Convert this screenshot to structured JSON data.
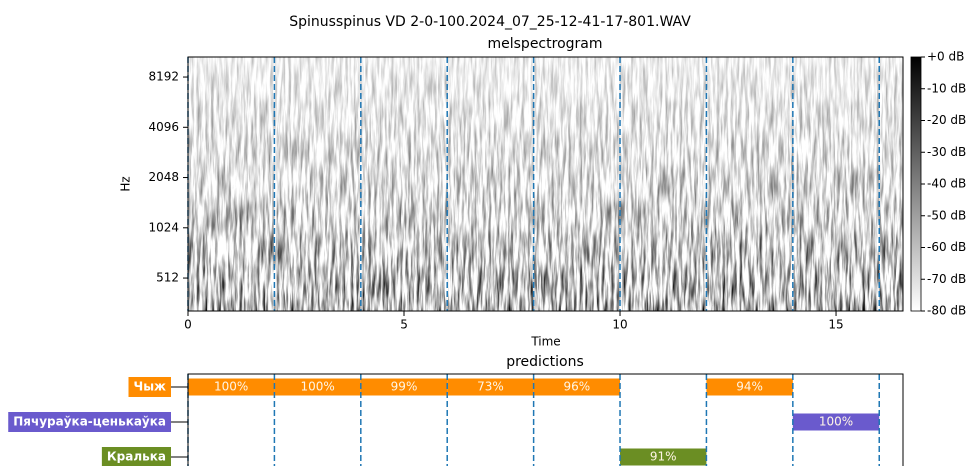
{
  "chart_data": [
    {
      "type": "spectrogram",
      "title": "Spinusspinus VD 2-0-100.2024_07_25-12-41-17-801.WAV",
      "subtitle": "melspectrogram",
      "xlabel": "Time",
      "ylabel": "Hz",
      "xlim": [
        0,
        16.55
      ],
      "xticks": [
        0,
        5,
        10,
        15
      ],
      "ylim": [
        325,
        10800
      ],
      "yscale": "log",
      "yticks": [
        512,
        1024,
        2048,
        4096,
        8192
      ],
      "markers": [
        0,
        2,
        4,
        6,
        8,
        10,
        12,
        14,
        16
      ],
      "marker_color": "#1f77b4",
      "colorbar": {
        "lim": [
          -80,
          0
        ],
        "ticks": [
          {
            "value": 0,
            "label": "+0 dB"
          },
          {
            "value": -10,
            "label": "-10 dB"
          },
          {
            "value": -20,
            "label": "-20 dB"
          },
          {
            "value": -30,
            "label": "-30 dB"
          },
          {
            "value": -40,
            "label": "-40 dB"
          },
          {
            "value": -50,
            "label": "-50 dB"
          },
          {
            "value": -60,
            "label": "-60 dB"
          },
          {
            "value": -70,
            "label": "-70 dB"
          },
          {
            "value": -80,
            "label": "-80 dB"
          }
        ]
      }
    },
    {
      "type": "timeline",
      "title": "predictions",
      "xlim": [
        0,
        16.55
      ],
      "markers": [
        0,
        2,
        4,
        6,
        8,
        10,
        12,
        14,
        16
      ],
      "marker_color": "#1f77b4",
      "series": [
        {
          "name": "Чыж",
          "color": "#ff8c00",
          "starts": [
            0,
            2,
            4,
            6,
            8,
            12
          ],
          "ends": [
            2,
            4,
            6,
            8,
            10,
            14
          ],
          "values": [
            100,
            100,
            99,
            73,
            96,
            94
          ],
          "value_labels": [
            "100%",
            "100%",
            "99%",
            "73%",
            "96%",
            "94%"
          ]
        },
        {
          "name": "Пячураўка-ценькаўка",
          "color": "#6a5acd",
          "starts": [
            14
          ],
          "ends": [
            16
          ],
          "values": [
            100
          ],
          "value_labels": [
            "100%"
          ]
        },
        {
          "name": "Кралька",
          "color": "#6b8e23",
          "starts": [
            10
          ],
          "ends": [
            12
          ],
          "values": [
            91
          ],
          "value_labels": [
            "91%"
          ]
        }
      ]
    }
  ]
}
